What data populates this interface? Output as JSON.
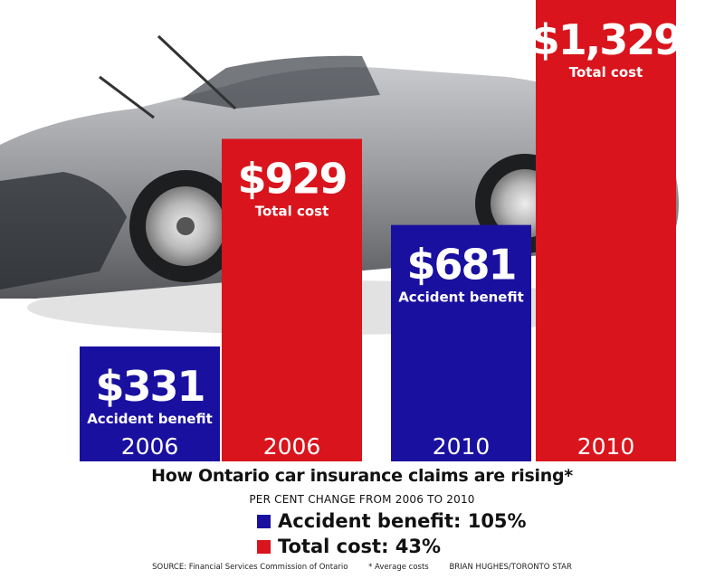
{
  "colors": {
    "accident_benefit": "#1a10a0",
    "total_cost": "#d9141c"
  },
  "background_image": "wrecked-convertible-car-photo",
  "chart_data": {
    "type": "bar",
    "categories": [
      "2006",
      "2006",
      "2010",
      "2010"
    ],
    "series": [
      {
        "name": "Accident benefit",
        "values": [
          331,
          null,
          681,
          null
        ],
        "data_labels": [
          "$331",
          null,
          "$681",
          null
        ],
        "label_captions": [
          "Accident benefit",
          null,
          "Accident benefit",
          null
        ]
      },
      {
        "name": "Total cost",
        "values": [
          null,
          929,
          null,
          1329
        ],
        "data_labels": [
          null,
          "$929",
          null,
          "$1,329"
        ],
        "label_captions": [
          null,
          "Total cost",
          null,
          "Total cost"
        ]
      }
    ],
    "title": "",
    "xlabel": "",
    "ylabel": "",
    "ylim": [
      0,
      1329
    ],
    "grid": false
  },
  "subtitle": "How Ontario car insurance claims are rising*",
  "per_cent_label": "PER CENT CHANGE FROM 2006 TO 2010",
  "legend": [
    {
      "label": "Accident benefit: 105%",
      "color": "#1a10a0"
    },
    {
      "label": "Total cost: 43%",
      "color": "#d9141c"
    }
  ],
  "footer": {
    "source": "SOURCE: Financial Services Commission of Ontario",
    "note": "* Average costs",
    "credit": "BRIAN HUGHES/TORONTO STAR"
  }
}
